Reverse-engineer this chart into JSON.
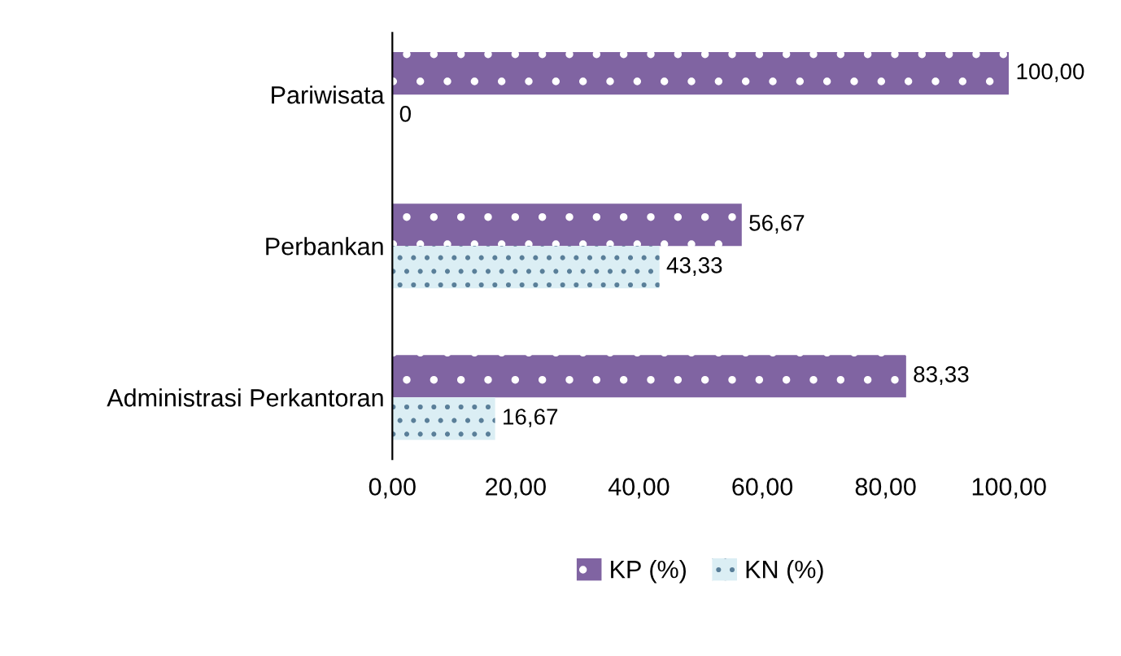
{
  "chart_data": {
    "type": "bar",
    "orientation": "horizontal",
    "categories": [
      "Pariwisata",
      "Perbankan",
      "Administrasi Perkantoran"
    ],
    "series": [
      {
        "name": "KP (%)",
        "color": "#8064a2",
        "values": [
          100.0,
          56.67,
          83.33
        ],
        "value_labels": [
          "100,00",
          "56,67",
          "83,33"
        ]
      },
      {
        "name": "KN (%)",
        "color": "#dbeef4",
        "values": [
          0,
          43.33,
          16.67
        ],
        "value_labels": [
          "0",
          "43,33",
          "16,67"
        ]
      }
    ],
    "xlim": [
      0,
      100
    ],
    "xticks": [
      {
        "value": 0,
        "label": "0,00"
      },
      {
        "value": 20,
        "label": "20,00"
      },
      {
        "value": 40,
        "label": "40,00"
      },
      {
        "value": 60,
        "label": "60,00"
      },
      {
        "value": 80,
        "label": "80,00"
      },
      {
        "value": 100,
        "label": "100,00"
      }
    ],
    "grid": false,
    "legend": "bottom"
  }
}
